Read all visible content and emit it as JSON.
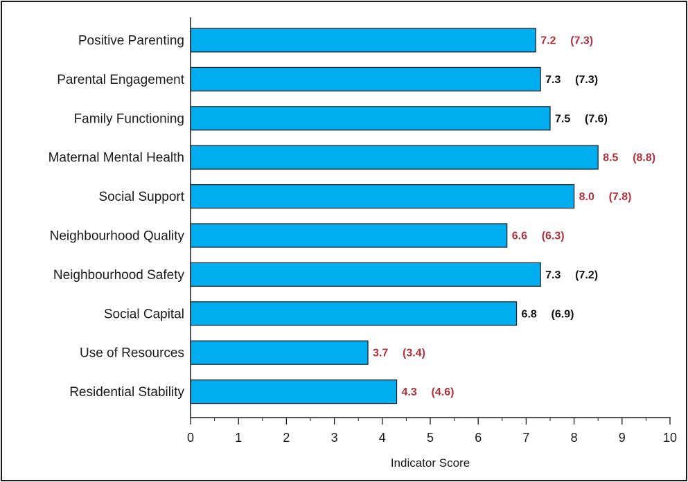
{
  "chart_data": {
    "type": "bar",
    "orientation": "horizontal",
    "title": "",
    "xlabel": "Indicator Score",
    "ylabel": "",
    "xlim": [
      0,
      10
    ],
    "x_ticks": [
      "0",
      "1",
      "2",
      "3",
      "4",
      "5",
      "6",
      "7",
      "8",
      "9",
      "10"
    ],
    "grid": false,
    "bar_color": "#00AEEF",
    "categories": [
      "Positive Parenting",
      "Parental Engagement",
      "Family Functioning",
      "Maternal Mental Health",
      "Social Support",
      "Neighbourhood Quality",
      "Neighbourhood Safety",
      "Social Capital",
      "Use of Resources",
      "Residential Stability"
    ],
    "values": [
      7.2,
      7.3,
      7.5,
      8.5,
      8.0,
      6.6,
      7.3,
      6.8,
      3.7,
      4.3
    ],
    "value_labels": [
      "7.2",
      "7.3",
      "7.5",
      "8.5",
      "8.0",
      "6.6",
      "7.3",
      "6.8",
      "3.7",
      "4.3"
    ],
    "comparison_labels": [
      "(7.3)",
      "(7.3)",
      "(7.6)",
      "(8.8)",
      "(7.8)",
      "(6.3)",
      "(7.2)",
      "(6.9)",
      "(3.4)",
      "(4.6)"
    ],
    "label_colors": [
      "#B0313C",
      "#111111",
      "#111111",
      "#B0313C",
      "#B0313C",
      "#B0313C",
      "#111111",
      "#111111",
      "#B0313C",
      "#B0313C"
    ]
  }
}
